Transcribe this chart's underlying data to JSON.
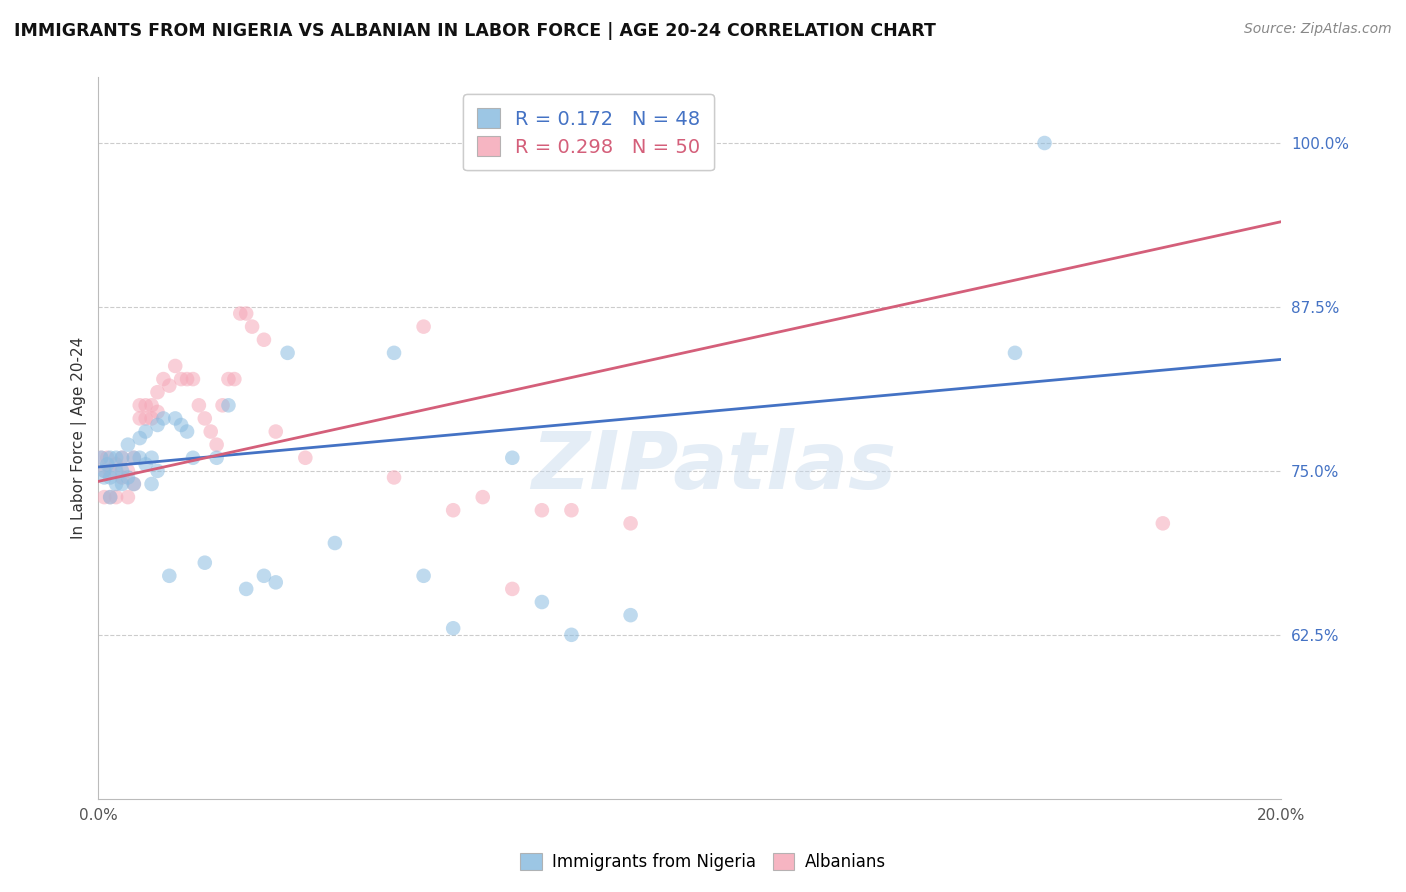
{
  "title": "IMMIGRANTS FROM NIGERIA VS ALBANIAN IN LABOR FORCE | AGE 20-24 CORRELATION CHART",
  "source": "Source: ZipAtlas.com",
  "ylabel": "In Labor Force | Age 20-24",
  "xlim": [
    0.0,
    0.2
  ],
  "ylim": [
    0.5,
    1.05
  ],
  "xticks": [
    0.0,
    0.04,
    0.08,
    0.12,
    0.16,
    0.2
  ],
  "xticklabels": [
    "0.0%",
    "",
    "",
    "",
    "",
    "20.0%"
  ],
  "ytick_positions": [
    0.625,
    0.75,
    0.875,
    1.0
  ],
  "yticklabels": [
    "62.5%",
    "75.0%",
    "87.5%",
    "100.0%"
  ],
  "nigeria_R": 0.172,
  "nigeria_N": 48,
  "albania_R": 0.298,
  "albania_N": 50,
  "nigeria_color": "#8bbce0",
  "albania_color": "#f5a8b8",
  "nigeria_line_color": "#4472c4",
  "albania_line_color": "#d45f7a",
  "marker_size": 110,
  "marker_alpha": 0.55,
  "nigeria_x": [
    0.0005,
    0.001,
    0.001,
    0.0015,
    0.002,
    0.002,
    0.002,
    0.003,
    0.003,
    0.003,
    0.004,
    0.004,
    0.004,
    0.005,
    0.005,
    0.006,
    0.006,
    0.007,
    0.007,
    0.008,
    0.008,
    0.009,
    0.009,
    0.01,
    0.01,
    0.011,
    0.012,
    0.013,
    0.014,
    0.015,
    0.016,
    0.018,
    0.02,
    0.022,
    0.025,
    0.028,
    0.03,
    0.032,
    0.04,
    0.05,
    0.055,
    0.06,
    0.07,
    0.075,
    0.08,
    0.09,
    0.155,
    0.16
  ],
  "nigeria_y": [
    0.76,
    0.75,
    0.745,
    0.755,
    0.76,
    0.745,
    0.73,
    0.76,
    0.75,
    0.74,
    0.76,
    0.75,
    0.74,
    0.77,
    0.745,
    0.76,
    0.74,
    0.775,
    0.76,
    0.78,
    0.755,
    0.76,
    0.74,
    0.785,
    0.75,
    0.79,
    0.67,
    0.79,
    0.785,
    0.78,
    0.76,
    0.68,
    0.76,
    0.8,
    0.66,
    0.67,
    0.665,
    0.84,
    0.695,
    0.84,
    0.67,
    0.63,
    0.76,
    0.65,
    0.625,
    0.64,
    0.84,
    1.0
  ],
  "albania_x": [
    0.0005,
    0.001,
    0.001,
    0.0015,
    0.002,
    0.002,
    0.003,
    0.003,
    0.004,
    0.004,
    0.005,
    0.005,
    0.006,
    0.006,
    0.007,
    0.007,
    0.008,
    0.008,
    0.009,
    0.009,
    0.01,
    0.01,
    0.011,
    0.012,
    0.013,
    0.014,
    0.015,
    0.016,
    0.017,
    0.018,
    0.019,
    0.02,
    0.021,
    0.022,
    0.023,
    0.024,
    0.025,
    0.026,
    0.028,
    0.03,
    0.035,
    0.05,
    0.055,
    0.06,
    0.065,
    0.07,
    0.075,
    0.08,
    0.09,
    0.18
  ],
  "albania_y": [
    0.76,
    0.73,
    0.75,
    0.76,
    0.75,
    0.73,
    0.755,
    0.73,
    0.76,
    0.745,
    0.75,
    0.73,
    0.76,
    0.74,
    0.8,
    0.79,
    0.8,
    0.79,
    0.8,
    0.79,
    0.81,
    0.795,
    0.82,
    0.815,
    0.83,
    0.82,
    0.82,
    0.82,
    0.8,
    0.79,
    0.78,
    0.77,
    0.8,
    0.82,
    0.82,
    0.87,
    0.87,
    0.86,
    0.85,
    0.78,
    0.76,
    0.745,
    0.86,
    0.72,
    0.73,
    0.66,
    0.72,
    0.72,
    0.71,
    0.71
  ],
  "watermark_text": "ZIPatlas",
  "grid_color": "#cccccc",
  "background_color": "#ffffff",
  "nigeria_line_y0": 0.753,
  "nigeria_line_y1": 0.835,
  "albania_line_y0": 0.742,
  "albania_line_y1": 0.94
}
